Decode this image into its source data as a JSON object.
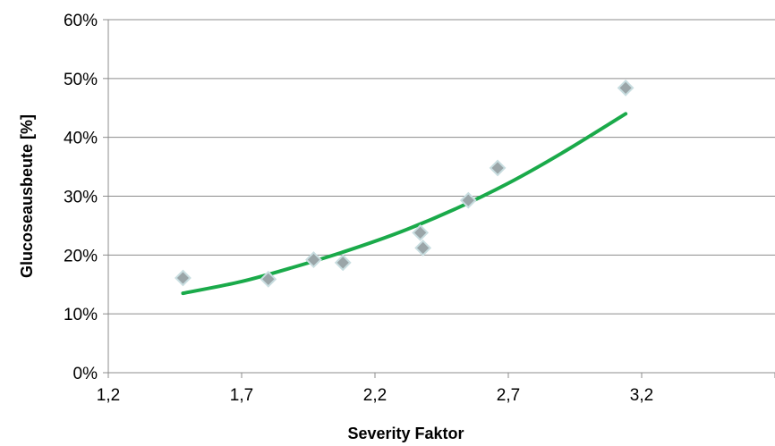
{
  "chart_data": {
    "type": "scatter",
    "title": "",
    "xlabel": "Severity Faktor",
    "ylabel": "Glucoseausbeute [%]",
    "xlim": [
      1.2,
      3.7
    ],
    "ylim": [
      0,
      0.6
    ],
    "x_ticks": [
      1.2,
      1.7,
      2.2,
      2.7,
      3.2
    ],
    "x_tick_labels": [
      "1,2",
      "1,7",
      "2,2",
      "2,7",
      "3,2"
    ],
    "y_ticks": [
      0,
      0.1,
      0.2,
      0.3,
      0.4,
      0.5,
      0.6
    ],
    "y_tick_labels": [
      "0%",
      "10%",
      "20%",
      "30%",
      "40%",
      "50%",
      "60%"
    ],
    "grid": "horizontal",
    "legend": "none",
    "series": [
      {
        "type": "scatter",
        "marker": "diamond",
        "color": "#9aa5a8",
        "edge_color": "#c8dde0",
        "points": [
          {
            "x": 1.48,
            "y": 0.161
          },
          {
            "x": 1.8,
            "y": 0.159
          },
          {
            "x": 1.97,
            "y": 0.192
          },
          {
            "x": 2.08,
            "y": 0.187
          },
          {
            "x": 2.37,
            "y": 0.238
          },
          {
            "x": 2.38,
            "y": 0.212
          },
          {
            "x": 2.55,
            "y": 0.293
          },
          {
            "x": 2.66,
            "y": 0.348
          },
          {
            "x": 3.14,
            "y": 0.484
          }
        ]
      },
      {
        "type": "line",
        "color": "#1aaa4a",
        "points": [
          {
            "x": 1.48,
            "y": 0.135
          },
          {
            "x": 1.7,
            "y": 0.155
          },
          {
            "x": 1.9,
            "y": 0.18
          },
          {
            "x": 2.1,
            "y": 0.208
          },
          {
            "x": 2.3,
            "y": 0.24
          },
          {
            "x": 2.5,
            "y": 0.278
          },
          {
            "x": 2.7,
            "y": 0.322
          },
          {
            "x": 2.9,
            "y": 0.373
          },
          {
            "x": 3.14,
            "y": 0.44
          }
        ]
      }
    ]
  }
}
